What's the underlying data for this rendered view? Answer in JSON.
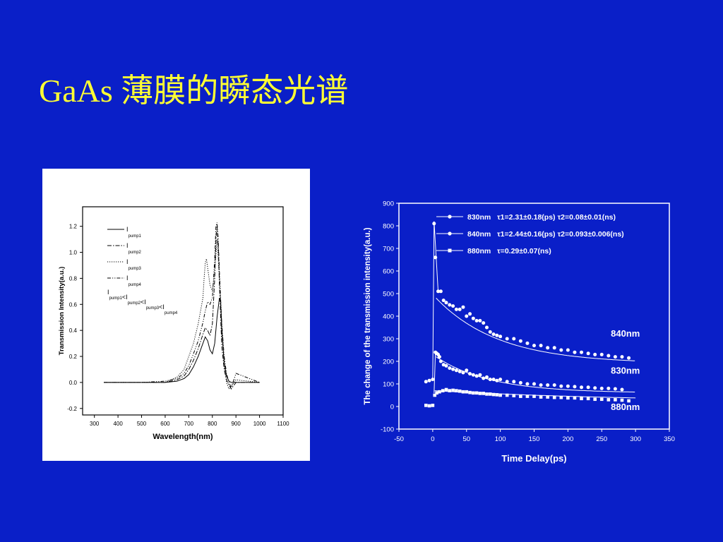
{
  "slide": {
    "title": "GaAs 薄膜的瞬态光谱"
  },
  "chart_data": [
    {
      "type": "line",
      "xlabel": "Wavelength(nm)",
      "ylabel": "Transmission Intensity(a.u.)",
      "xlim": [
        250,
        1100
      ],
      "ylim": [
        -0.25,
        1.35
      ],
      "xticks": [
        "300",
        "400",
        "500",
        "600",
        "700",
        "800",
        "900",
        "1000",
        "1100"
      ],
      "yticks": [
        "-0.2",
        "0.0",
        "0.2",
        "0.4",
        "0.6",
        "0.8",
        "1.0",
        "1.2"
      ],
      "legend_position": "top-left",
      "legend": [
        {
          "main": "I",
          "sub": "pump1",
          "style": "solid"
        },
        {
          "main": "I",
          "sub": "pump2",
          "style": "dashdot"
        },
        {
          "main": "I",
          "sub": "pump3",
          "style": "dotted"
        },
        {
          "main": "I",
          "sub": "pump4",
          "style": "dashdotdot"
        }
      ],
      "legend_relation": {
        "parts": [
          {
            "main": "I",
            "sub": "pump1"
          },
          {
            "main": "<I",
            "sub": "pump2"
          },
          {
            "main": "<I",
            "sub": "pump3"
          },
          {
            "main": "<I",
            "sub": "pump4"
          }
        ]
      },
      "series": [
        {
          "style": "solid",
          "x": [
            340,
            400,
            500,
            600,
            650,
            680,
            700,
            720,
            740,
            760,
            770,
            780,
            790,
            800,
            810,
            820,
            830,
            835,
            840,
            850,
            860,
            870,
            880,
            900,
            950,
            1000
          ],
          "y": [
            0,
            0,
            0,
            0,
            0.01,
            0.03,
            0.06,
            0.12,
            0.2,
            0.3,
            0.35,
            0.32,
            0.25,
            0.22,
            0.3,
            0.5,
            0.65,
            0.62,
            0.4,
            0.15,
            0.05,
            0.01,
            0.0,
            0.0,
            0.0,
            0.0
          ]
        },
        {
          "style": "dashdot",
          "x": [
            340,
            400,
            500,
            600,
            650,
            680,
            700,
            720,
            740,
            760,
            770,
            780,
            790,
            800,
            810,
            815,
            820,
            825,
            830,
            835,
            840,
            850,
            860,
            870,
            880,
            900,
            1000
          ],
          "y": [
            0,
            0,
            0,
            0,
            0.02,
            0.05,
            0.1,
            0.17,
            0.26,
            0.37,
            0.42,
            0.4,
            0.36,
            0.45,
            0.8,
            1.1,
            1.2,
            1.05,
            0.75,
            0.5,
            0.28,
            0.1,
            0.02,
            -0.02,
            -0.05,
            0.0,
            0.0
          ]
        },
        {
          "style": "dotted",
          "x": [
            340,
            400,
            500,
            600,
            650,
            680,
            700,
            720,
            740,
            760,
            765,
            770,
            775,
            780,
            790,
            800,
            810,
            820,
            830,
            840,
            850,
            860,
            870,
            880,
            900,
            1000
          ],
          "y": [
            0,
            0,
            0,
            0,
            0.04,
            0.1,
            0.2,
            0.3,
            0.45,
            0.65,
            0.8,
            0.92,
            0.95,
            0.88,
            0.75,
            0.7,
            0.85,
            1.1,
            0.8,
            0.45,
            0.15,
            0.0,
            -0.05,
            -0.03,
            0.02,
            0.0
          ]
        },
        {
          "style": "dashdotdot",
          "x": [
            340,
            400,
            500,
            600,
            650,
            680,
            700,
            720,
            740,
            760,
            770,
            780,
            790,
            800,
            810,
            815,
            820,
            825,
            830,
            840,
            850,
            860,
            870,
            880,
            900,
            1000
          ],
          "y": [
            0,
            0,
            0,
            0.01,
            0.03,
            0.07,
            0.13,
            0.22,
            0.32,
            0.46,
            0.55,
            0.62,
            0.6,
            0.65,
            0.95,
            1.2,
            1.23,
            1.1,
            0.85,
            0.45,
            0.2,
            0.07,
            0.0,
            -0.04,
            0.07,
            0.0
          ]
        }
      ]
    },
    {
      "type": "scatter",
      "xlabel": "Time Delay(ps)",
      "ylabel": "The change of the transmission intensity(a.u.)",
      "xlim": [
        -50,
        350
      ],
      "ylim": [
        -100,
        900
      ],
      "xticks": [
        "-50",
        "0",
        "50",
        "100",
        "150",
        "200",
        "250",
        "300",
        "350"
      ],
      "yticks": [
        "-100",
        "0",
        "100",
        "200",
        "300",
        "400",
        "500",
        "600",
        "700",
        "800",
        "900"
      ],
      "legend_position": "top-right",
      "legend": [
        {
          "name": "830nm",
          "marker": "circle",
          "fit": "τ1=2.31±0.18(ps)  τ2=0.08±0.01(ns)"
        },
        {
          "name": "840nm",
          "marker": "circle",
          "fit": "τ1=2.44±0.16(ps)  τ2=0.093±0.006(ns)"
        },
        {
          "name": "880nm",
          "marker": "square",
          "fit": "τ=0.29±0.07(ns)"
        }
      ],
      "labels": [
        {
          "text": "840nm",
          "x": 285,
          "y": 310
        },
        {
          "text": "830nm",
          "x": 285,
          "y": 145
        },
        {
          "text": "880nm",
          "x": 285,
          "y": -15
        }
      ],
      "series": [
        {
          "name": "840nm",
          "marker": "circle",
          "x": [
            -10,
            -5,
            0,
            2,
            4,
            8,
            12,
            16,
            20,
            25,
            30,
            35,
            40,
            45,
            50,
            55,
            60,
            65,
            70,
            75,
            80,
            85,
            90,
            95,
            100,
            110,
            120,
            130,
            140,
            150,
            160,
            170,
            180,
            190,
            200,
            210,
            220,
            230,
            240,
            250,
            260,
            270,
            280,
            290
          ],
          "y": [
            110,
            115,
            120,
            810,
            660,
            510,
            510,
            470,
            460,
            450,
            445,
            430,
            430,
            440,
            400,
            410,
            390,
            380,
            380,
            370,
            350,
            330,
            320,
            315,
            310,
            300,
            300,
            290,
            280,
            270,
            270,
            260,
            260,
            250,
            250,
            240,
            240,
            235,
            230,
            230,
            225,
            220,
            220,
            215
          ]
        },
        {
          "name": "830nm",
          "marker": "circle",
          "x": [
            4,
            6,
            8,
            10,
            12,
            16,
            20,
            25,
            30,
            35,
            40,
            45,
            50,
            55,
            60,
            65,
            70,
            75,
            80,
            85,
            90,
            95,
            100,
            110,
            120,
            130,
            140,
            150,
            160,
            170,
            180,
            190,
            200,
            210,
            220,
            230,
            240,
            250,
            260,
            270,
            280
          ],
          "y": [
            240,
            235,
            230,
            220,
            200,
            185,
            180,
            170,
            165,
            160,
            155,
            150,
            160,
            145,
            140,
            135,
            140,
            125,
            130,
            120,
            120,
            115,
            120,
            110,
            110,
            105,
            100,
            100,
            95,
            95,
            95,
            90,
            90,
            88,
            85,
            85,
            82,
            80,
            80,
            78,
            75
          ]
        },
        {
          "name": "880nm",
          "marker": "square",
          "x": [
            -10,
            -5,
            0,
            3,
            6,
            10,
            15,
            20,
            25,
            30,
            35,
            40,
            45,
            50,
            55,
            60,
            65,
            70,
            75,
            80,
            85,
            90,
            95,
            100,
            110,
            120,
            130,
            140,
            150,
            160,
            170,
            180,
            190,
            200,
            210,
            220,
            230,
            240,
            250,
            260,
            270,
            280,
            290
          ],
          "y": [
            5,
            3,
            5,
            50,
            60,
            65,
            70,
            75,
            70,
            72,
            70,
            68,
            65,
            65,
            62,
            60,
            60,
            58,
            58,
            55,
            55,
            53,
            52,
            50,
            50,
            48,
            45,
            45,
            45,
            42,
            42,
            40,
            40,
            38,
            38,
            35,
            35,
            32,
            32,
            30,
            30,
            28,
            25
          ]
        }
      ]
    }
  ]
}
